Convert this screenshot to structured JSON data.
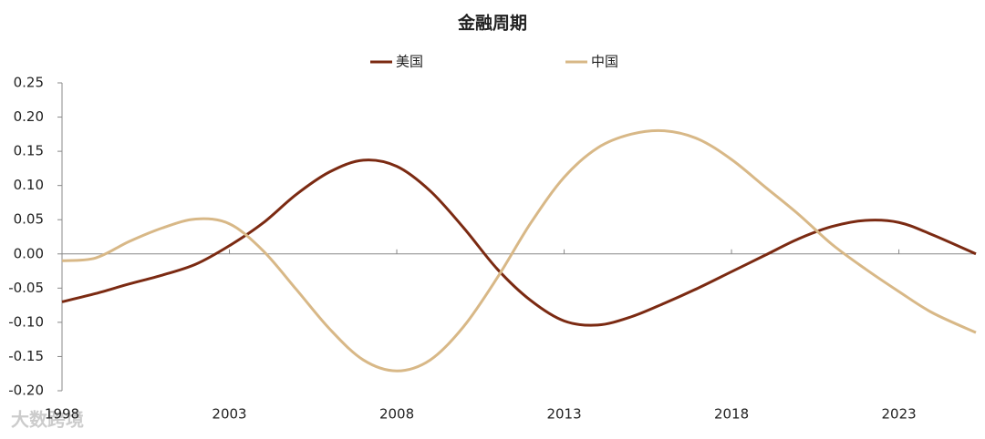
{
  "chart_data": {
    "type": "line",
    "title": "金融周期",
    "watermark": "大数跨境",
    "x": [
      1998,
      1999,
      2000,
      2001,
      2002,
      2003,
      2004,
      2005,
      2006,
      2007,
      2008,
      2009,
      2010,
      2011,
      2012,
      2013,
      2014,
      2015,
      2016,
      2017,
      2018,
      2019,
      2020,
      2021,
      2022,
      2023,
      2024,
      2025.3
    ],
    "series": [
      {
        "name": "美国",
        "color": "#7b2a12",
        "values": [
          -0.07,
          -0.058,
          -0.044,
          -0.031,
          -0.015,
          0.012,
          0.045,
          0.087,
          0.12,
          0.137,
          0.128,
          0.092,
          0.038,
          -0.022,
          -0.068,
          -0.098,
          -0.104,
          -0.092,
          -0.072,
          -0.05,
          -0.026,
          -0.002,
          0.022,
          0.04,
          0.049,
          0.046,
          0.028,
          0.0
        ]
      },
      {
        "name": "中国",
        "color": "#d8b887",
        "values": [
          -0.01,
          -0.006,
          0.018,
          0.038,
          0.051,
          0.044,
          0.005,
          -0.052,
          -0.11,
          -0.155,
          -0.171,
          -0.155,
          -0.106,
          -0.035,
          0.045,
          0.112,
          0.155,
          0.175,
          0.18,
          0.168,
          0.138,
          0.098,
          0.058,
          0.014,
          -0.022,
          -0.055,
          -0.086,
          -0.115
        ]
      }
    ],
    "xlim": [
      1998,
      2025.3
    ],
    "xticks": [
      1998,
      2003,
      2008,
      2013,
      2018,
      2023
    ],
    "ylim": [
      -0.2,
      0.25
    ],
    "yticks": [
      {
        "value": -0.2,
        "label": "-0.20"
      },
      {
        "value": -0.15,
        "label": "-0.15"
      },
      {
        "value": -0.1,
        "label": "-0.10"
      },
      {
        "value": -0.05,
        "label": "-0.05"
      },
      {
        "value": 0,
        "label": "0.00"
      },
      {
        "value": 0.05,
        "label": "0.05"
      },
      {
        "value": 0.1,
        "label": "0.10"
      },
      {
        "value": 0.15,
        "label": "0.15"
      },
      {
        "value": 0.2,
        "label": "0.20"
      },
      {
        "value": 0.25,
        "label": "0.25"
      }
    ],
    "grid": false,
    "legend": "top"
  }
}
